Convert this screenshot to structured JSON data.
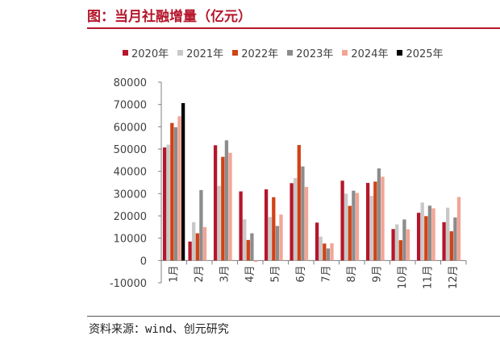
{
  "header": {
    "title": "图：当月社融增量（亿元）"
  },
  "footer": {
    "source": "资料来源：wind、创元研究"
  },
  "chart_data": {
    "type": "bar",
    "categories": [
      "1月",
      "2月",
      "3月",
      "4月",
      "5月",
      "6月",
      "7月",
      "8月",
      "9月",
      "10月",
      "11月",
      "12月"
    ],
    "series": [
      {
        "name": "2020年",
        "color": "#B5162B",
        "values": [
          50700,
          8500,
          51700,
          31000,
          31900,
          34700,
          17000,
          35800,
          34800,
          14100,
          21400,
          17200
        ]
      },
      {
        "name": "2021年",
        "color": "#C8C8C8",
        "values": [
          52000,
          17200,
          33500,
          18500,
          19500,
          37000,
          10700,
          30000,
          29000,
          16200,
          26000,
          23700
        ]
      },
      {
        "name": "2022年",
        "color": "#D14216",
        "values": [
          61700,
          12200,
          46500,
          9200,
          28400,
          51800,
          7600,
          24500,
          35400,
          9100,
          19900,
          13100
        ]
      },
      {
        "name": "2023年",
        "color": "#8C8C8C",
        "values": [
          59800,
          31600,
          53900,
          12200,
          15500,
          42200,
          5400,
          31300,
          41300,
          18400,
          24600,
          19300
        ]
      },
      {
        "name": "2024年",
        "color": "#F2A595",
        "values": [
          64700,
          15000,
          48300,
          -600,
          20600,
          33000,
          7700,
          30300,
          37600,
          14000,
          23400,
          28500
        ]
      },
      {
        "name": "2025年",
        "color": "#000000",
        "values": [
          70600,
          null,
          null,
          null,
          null,
          null,
          null,
          null,
          null,
          null,
          null,
          null
        ]
      }
    ],
    "ylim": [
      -10000,
      80000
    ],
    "yticks": [
      -10000,
      0,
      10000,
      20000,
      30000,
      40000,
      50000,
      60000,
      70000,
      80000
    ],
    "legend_position": "top",
    "grid": false
  }
}
